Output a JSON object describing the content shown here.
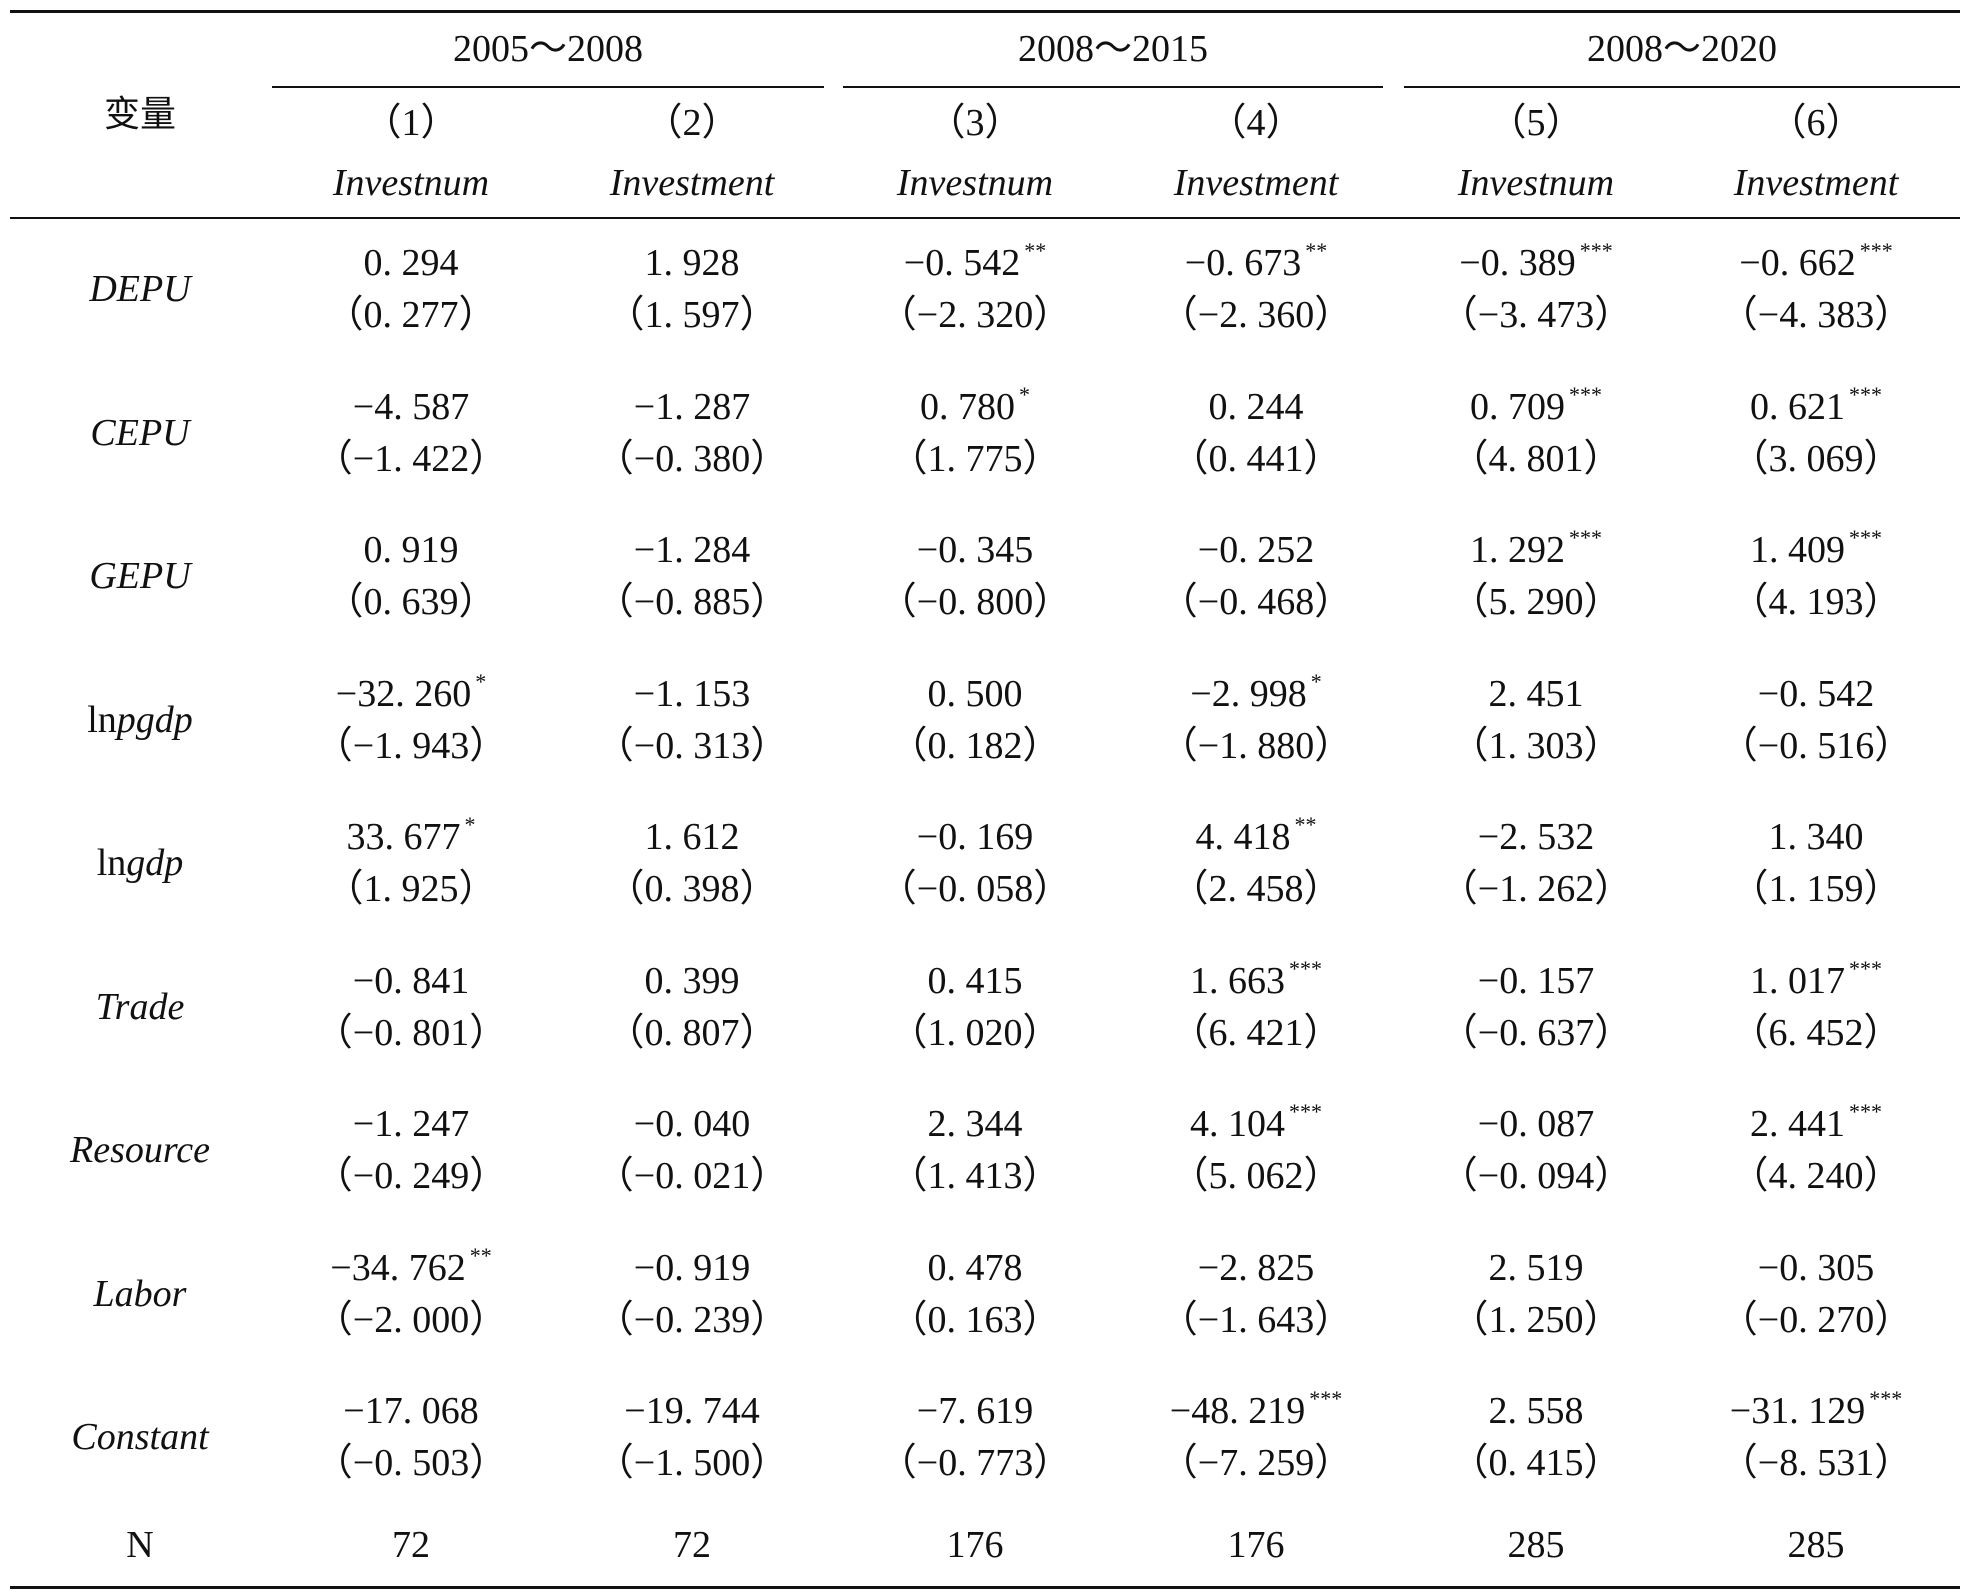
{
  "header": {
    "variable_label": "变量",
    "period_groups": [
      "2005～2008",
      "2008～2015",
      "2008～2020"
    ],
    "column_numbers": [
      "（1）",
      "（2）",
      "（3）",
      "（4）",
      "（5）",
      "（6）"
    ],
    "dependent_vars": [
      "Investnum",
      "Investment",
      "Investnum",
      "Investment",
      "Investnum",
      "Investment"
    ]
  },
  "rows": [
    {
      "label": "DEPU",
      "italic": "full",
      "coef": [
        "0. 294",
        "1. 928",
        "−0. 542",
        "−0. 673",
        "−0. 389",
        "−0. 662"
      ],
      "stars": [
        "",
        "",
        "**",
        "**",
        "***",
        "***"
      ],
      "tstat": [
        "（0. 277）",
        "（1. 597）",
        "（−2. 320）",
        "（−2. 360）",
        "（−3. 473）",
        "（−4. 383）"
      ]
    },
    {
      "label": "CEPU",
      "italic": "full",
      "coef": [
        "−4. 587",
        "−1. 287",
        "0. 780",
        "0. 244",
        "0. 709",
        "0. 621"
      ],
      "stars": [
        "",
        "",
        "*",
        "",
        "***",
        "***"
      ],
      "tstat": [
        "（−1. 422）",
        "（−0. 380）",
        "（1. 775）",
        "（0. 441）",
        "（4. 801）",
        "（3. 069）"
      ]
    },
    {
      "label": "GEPU",
      "italic": "full",
      "coef": [
        "0. 919",
        "−1. 284",
        "−0. 345",
        "−0. 252",
        "1. 292",
        "1. 409"
      ],
      "stars": [
        "",
        "",
        "",
        "",
        "***",
        "***"
      ],
      "tstat": [
        "（0. 639）",
        "（−0. 885）",
        "（−0. 800）",
        "（−0. 468）",
        "（5. 290）",
        "（4. 193）"
      ]
    },
    {
      "label_prefix": "ln",
      "label_rest": "pgdp",
      "italic": "partial",
      "coef": [
        "−32. 260",
        "−1. 153",
        "0. 500",
        "−2. 998",
        "2. 451",
        "−0. 542"
      ],
      "stars": [
        "*",
        "",
        "",
        "*",
        "",
        ""
      ],
      "tstat": [
        "（−1. 943）",
        "（−0. 313）",
        "（0. 182）",
        "（−1. 880）",
        "（1. 303）",
        "（−0. 516）"
      ]
    },
    {
      "label_prefix": "ln",
      "label_rest": "gdp",
      "italic": "partial",
      "coef": [
        "33. 677",
        "1. 612",
        "−0. 169",
        "4. 418",
        "−2. 532",
        "1. 340"
      ],
      "stars": [
        "*",
        "",
        "",
        "**",
        "",
        ""
      ],
      "tstat": [
        "（1. 925）",
        "（0. 398）",
        "（−0. 058）",
        "（2. 458）",
        "（−1. 262）",
        "（1. 159）"
      ]
    },
    {
      "label": "Trade",
      "italic": "full",
      "coef": [
        "−0. 841",
        "0. 399",
        "0. 415",
        "1. 663",
        "−0. 157",
        "1. 017"
      ],
      "stars": [
        "",
        "",
        "",
        "***",
        "",
        "***"
      ],
      "tstat": [
        "（−0. 801）",
        "（0. 807）",
        "（1. 020）",
        "（6. 421）",
        "（−0. 637）",
        "（6. 452）"
      ]
    },
    {
      "label": "Resource",
      "italic": "full",
      "coef": [
        "−1. 247",
        "−0. 040",
        "2. 344",
        "4. 104",
        "−0. 087",
        "2. 441"
      ],
      "stars": [
        "",
        "",
        "",
        "***",
        "",
        "***"
      ],
      "tstat": [
        "（−0. 249）",
        "（−0. 021）",
        "（1. 413）",
        "（5. 062）",
        "（−0. 094）",
        "（4. 240）"
      ]
    },
    {
      "label": "Labor",
      "italic": "full",
      "coef": [
        "−34. 762",
        "−0. 919",
        "0. 478",
        "−2. 825",
        "2. 519",
        "−0. 305"
      ],
      "stars": [
        "**",
        "",
        "",
        "",
        "",
        ""
      ],
      "tstat": [
        "（−2. 000）",
        "（−0. 239）",
        "（0. 163）",
        "（−1. 643）",
        "（1. 250）",
        "（−0. 270）"
      ]
    },
    {
      "label": "Constant",
      "italic": "full",
      "coef": [
        "−17. 068",
        "−19. 744",
        "−7. 619",
        "−48. 219",
        "2. 558",
        "−31. 129"
      ],
      "stars": [
        "",
        "",
        "",
        "***",
        "",
        "***"
      ],
      "tstat": [
        "（−0. 503）",
        "（−1. 500）",
        "（−0. 773）",
        "（−7. 259）",
        "（0. 415）",
        "（−8. 531）"
      ]
    }
  ],
  "n_row": {
    "label": "N",
    "values": [
      "72",
      "72",
      "176",
      "176",
      "285",
      "285"
    ]
  }
}
